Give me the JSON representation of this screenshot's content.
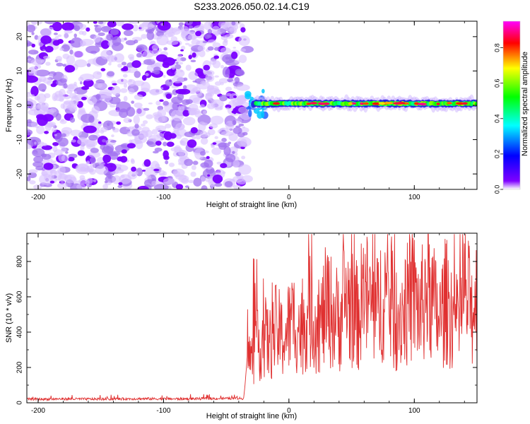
{
  "chart_data": [
    {
      "type": "heatmap",
      "title": "S233.2026.050.02.14.C19",
      "xlabel": "Height of straight line (km)",
      "ylabel": "Frequency (Hz)",
      "xlim": [
        -209,
        150
      ],
      "ylim": [
        -24.5,
        24.5
      ],
      "xticks": [
        -200,
        -100,
        0,
        100
      ],
      "xtick_labels": [
        "-200",
        "-100",
        "0",
        "100"
      ],
      "yticks": [
        -20,
        -10,
        0,
        10,
        20
      ],
      "ytick_labels": [
        "-20",
        "-10",
        "0",
        "10",
        "20"
      ],
      "noise_region_x": [
        -209,
        -33
      ],
      "signal_region_x": [
        -33,
        150
      ],
      "signal_center_frequency_hz": 0.5,
      "colorbar": {
        "label": "Normalized spectral amplitude",
        "range": [
          0,
          0.95
        ],
        "ticks": [
          0.0,
          0.2,
          0.4,
          0.6,
          0.8
        ],
        "tick_labels": [
          "0.0",
          "0.2",
          "0.4",
          "0.6",
          "0.8"
        ],
        "colors": [
          "#ffffff",
          "#7f00ff",
          "#0000ff",
          "#00ffff",
          "#00ff00",
          "#ffff00",
          "#ff0000",
          "#ff00ff"
        ]
      }
    },
    {
      "type": "line",
      "title": "",
      "xlabel": "Height of straight line (km)",
      "ylabel": "SNR (10 * v/v)",
      "xlim": [
        -209,
        150
      ],
      "ylim": [
        0,
        960
      ],
      "xticks": [
        -200,
        -100,
        0,
        100
      ],
      "xtick_labels": [
        "-200",
        "-100",
        "0",
        "100"
      ],
      "yticks": [
        0,
        200,
        400,
        600,
        800
      ],
      "ytick_labels": [
        "0",
        "200",
        "400",
        "600",
        "800"
      ],
      "series_color": "#e03030",
      "series": [
        {
          "name": "SNR",
          "x": [
            -209,
            -180,
            -150,
            -120,
            -90,
            -60,
            -36,
            -33,
            -30,
            -27,
            -24,
            -20,
            -15,
            -10,
            -5,
            0,
            5,
            10,
            15,
            20,
            25,
            30,
            35,
            40,
            45,
            50,
            55,
            60,
            65,
            70,
            75,
            80,
            85,
            90,
            95,
            100,
            105,
            110,
            115,
            120,
            125,
            130,
            135,
            140,
            145,
            150
          ],
          "y": [
            20,
            22,
            21,
            23,
            22,
            24,
            25,
            280,
            240,
            300,
            330,
            380,
            330,
            420,
            360,
            430,
            470,
            400,
            520,
            480,
            430,
            560,
            500,
            470,
            600,
            540,
            480,
            620,
            560,
            500,
            640,
            580,
            470,
            520,
            560,
            600,
            500,
            680,
            560,
            460,
            580,
            520,
            420,
            640,
            520,
            600
          ]
        }
      ]
    }
  ]
}
